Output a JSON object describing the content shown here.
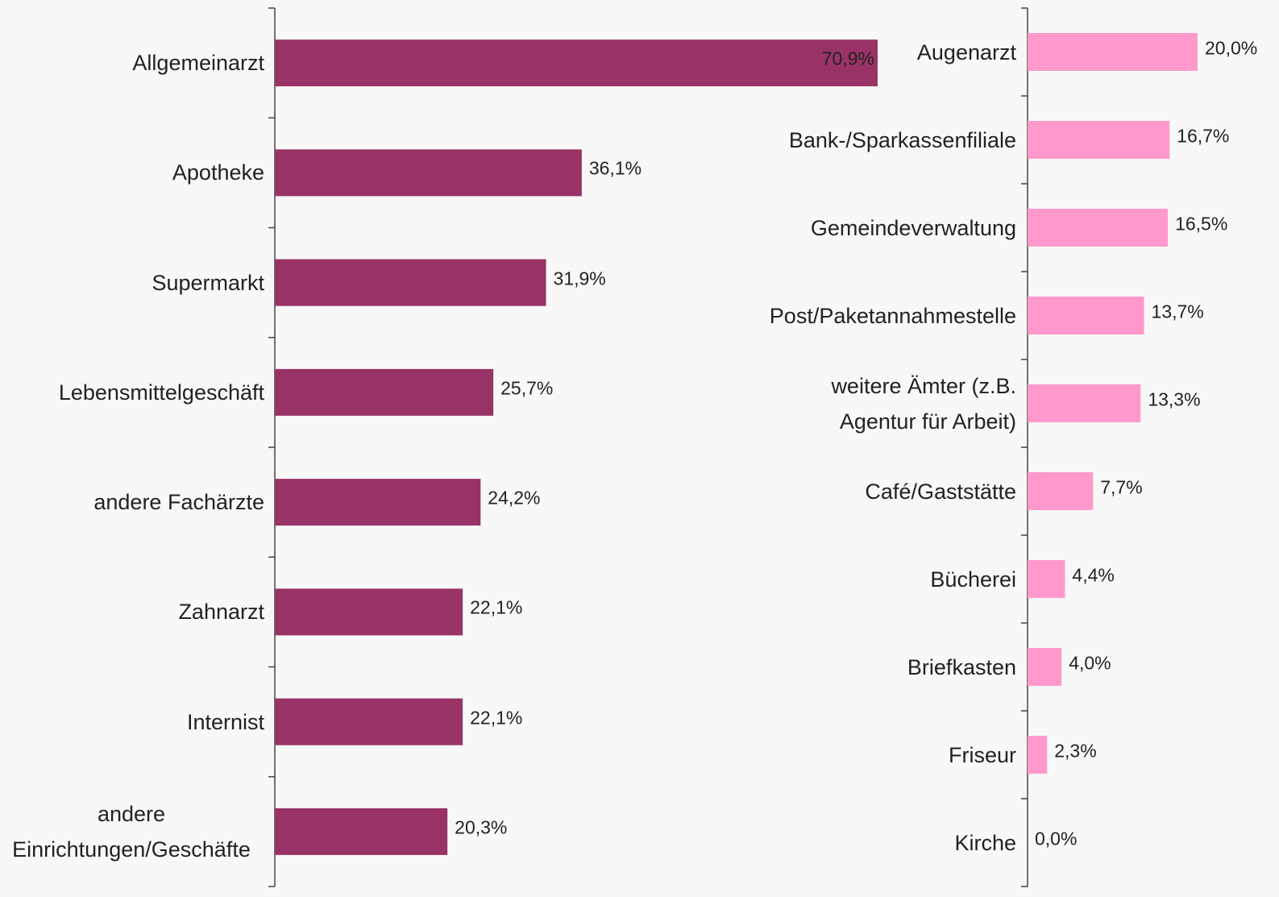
{
  "chart_data": [
    {
      "type": "bar",
      "orientation": "horizontal",
      "color": "#993366",
      "categories": [
        "Allgemeinarzt",
        "Apotheke",
        "Supermarkt",
        "Lebensmittelgeschäft",
        "andere Fachärzte",
        "Zahnarzt",
        "Internist",
        "andere\nEinrichtungen/Geschäfte"
      ],
      "values": [
        70.9,
        36.1,
        31.9,
        25.7,
        24.2,
        22.1,
        22.1,
        20.3
      ],
      "value_labels": [
        "70,9%",
        "36,1%",
        "31,9%",
        "25,7%",
        "24,2%",
        "22,1%",
        "22,1%",
        "20,3%"
      ],
      "xlim": [
        0,
        100
      ]
    },
    {
      "type": "bar",
      "orientation": "horizontal",
      "color": "#ff99cc",
      "categories": [
        "Augenarzt",
        "Bank-/Sparkassenfiliale",
        "Gemeindeverwaltung",
        "Post/Paketannahmestelle",
        "weitere Ämter (z.B.\nAgentur für Arbeit)",
        "Café/Gaststätte",
        "Bücherei",
        "Briefkasten",
        "Friseur",
        "Kirche"
      ],
      "values": [
        20.0,
        16.7,
        16.5,
        13.7,
        13.3,
        7.7,
        4.4,
        4.0,
        2.3,
        0.0
      ],
      "value_labels": [
        "20,0%",
        "16,7%",
        "16,5%",
        "13,7%",
        "13,3%",
        "7,7%",
        "4,4%",
        "4,0%",
        "2,3%",
        "0,0%"
      ],
      "xlim": [
        0,
        100
      ]
    }
  ]
}
